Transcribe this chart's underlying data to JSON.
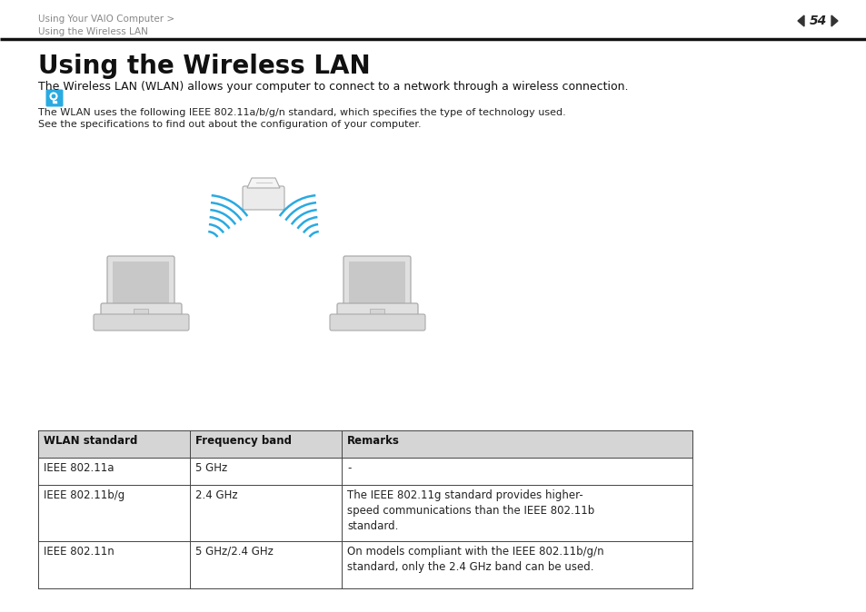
{
  "bg_color": "#ffffff",
  "breadcrumb_line1": "Using Your VAIO Computer >",
  "breadcrumb_line2": "Using the Wireless LAN",
  "page_number": "54",
  "title": "Using the Wireless LAN",
  "subtitle": "The Wireless LAN (WLAN) allows your computer to connect to a network through a wireless connection.",
  "note_line1": "The WLAN uses the following IEEE 802.11a/b/g/n standard, which specifies the type of technology used.",
  "note_line2": "See the specifications to find out about the configuration of your computer.",
  "table_headers": [
    "WLAN standard",
    "Frequency band",
    "Remarks"
  ],
  "table_rows": [
    [
      "IEEE 802.11a",
      "5 GHz",
      "-"
    ],
    [
      "IEEE 802.11b/g",
      "2.4 GHz",
      "The IEEE 802.11g standard provides higher-\nspeed communications than the IEEE 802.11b\nstandard."
    ],
    [
      "IEEE 802.11n",
      "5 GHz/2.4 GHz",
      "On models compliant with the IEEE 802.11b/g/n\nstandard, only the 2.4 GHz band can be used."
    ]
  ],
  "table_header_bg": "#d0d0d0",
  "table_border_color": "#555555",
  "icon_color": "#29aae1",
  "breadcrumb_color": "#888888",
  "laptop_fill": "#e0e0e0",
  "laptop_edge": "#aaaaaa",
  "router_fill": "#ebebeb",
  "router_edge": "#aaaaaa"
}
